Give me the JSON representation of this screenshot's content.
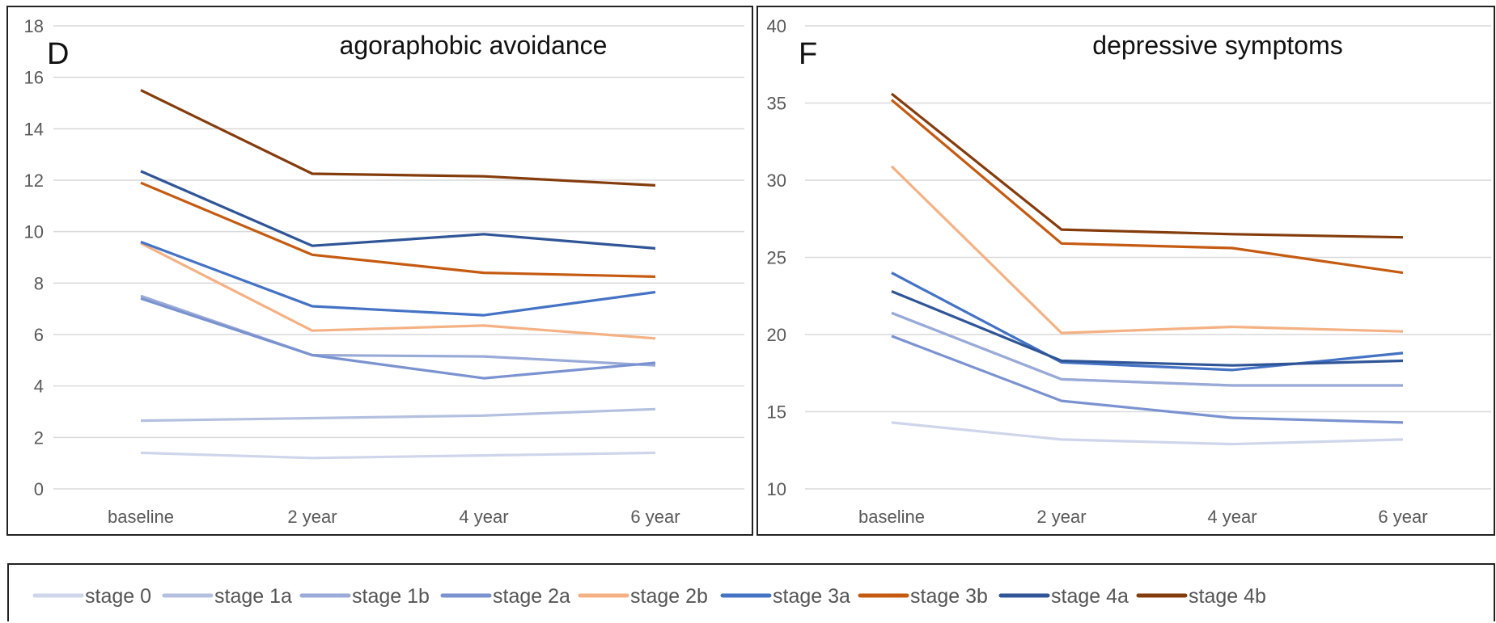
{
  "chart_data": [
    {
      "type": "line",
      "letter": "D",
      "title": "agoraphobic avoidance",
      "categories": [
        "baseline",
        "2 year",
        "4 year",
        "6 year"
      ],
      "ylim": [
        0,
        18
      ],
      "yticks": [
        0,
        2,
        4,
        6,
        8,
        10,
        12,
        14,
        16,
        18
      ],
      "grid": true,
      "series": [
        {
          "name": "stage 0",
          "color": "#cfd5ea",
          "values": [
            1.4,
            1.2,
            1.3,
            1.4
          ]
        },
        {
          "name": "stage 1a",
          "color": "#b4c0e0",
          "values": [
            2.65,
            2.75,
            2.85,
            3.1
          ]
        },
        {
          "name": "stage 1b",
          "color": "#9aaad8",
          "values": [
            7.5,
            5.2,
            5.15,
            4.8
          ]
        },
        {
          "name": "stage 2a",
          "color": "#7a92d0",
          "values": [
            7.4,
            5.2,
            4.3,
            4.9
          ]
        },
        {
          "name": "stage 2b",
          "color": "#f4b183",
          "values": [
            9.55,
            6.15,
            6.35,
            5.85
          ]
        },
        {
          "name": "stage 3a",
          "color": "#4472c4",
          "values": [
            9.6,
            7.1,
            6.75,
            7.65
          ]
        },
        {
          "name": "stage 3b",
          "color": "#c55a11",
          "values": [
            11.9,
            9.1,
            8.4,
            8.25
          ]
        },
        {
          "name": "stage 4a",
          "color": "#2f5597",
          "values": [
            12.35,
            9.45,
            9.9,
            9.35
          ]
        },
        {
          "name": "stage 4b",
          "color": "#843c0c",
          "values": [
            15.5,
            12.25,
            12.15,
            11.8
          ]
        }
      ]
    },
    {
      "type": "line",
      "letter": "F",
      "title": "depressive symptoms",
      "categories": [
        "baseline",
        "2 year",
        "4 year",
        "6 year"
      ],
      "ylim": [
        10,
        40
      ],
      "yticks": [
        10,
        15,
        20,
        25,
        30,
        35,
        40
      ],
      "grid": true,
      "series": [
        {
          "name": "stage 0",
          "color": "#cfd5ea",
          "values": [
            14.3,
            13.2,
            12.9,
            13.2
          ]
        },
        {
          "name": "stage 1a",
          "color": "#b4c0e0",
          "values": [
            21.4,
            17.1,
            16.7,
            16.7
          ]
        },
        {
          "name": "stage 1b",
          "color": "#9aaad8",
          "values": [
            21.4,
            17.1,
            16.7,
            16.7
          ]
        },
        {
          "name": "stage 2a",
          "color": "#7a92d0",
          "values": [
            19.9,
            15.7,
            14.6,
            14.3
          ]
        },
        {
          "name": "stage 2b",
          "color": "#f4b183",
          "values": [
            30.9,
            20.1,
            20.5,
            20.2
          ]
        },
        {
          "name": "stage 3a",
          "color": "#4472c4",
          "values": [
            24.0,
            18.2,
            17.7,
            18.8
          ]
        },
        {
          "name": "stage 3b",
          "color": "#c55a11",
          "values": [
            35.2,
            25.9,
            25.6,
            24.0
          ]
        },
        {
          "name": "stage 4a",
          "color": "#2f5597",
          "values": [
            22.8,
            18.3,
            18.0,
            18.3
          ]
        },
        {
          "name": "stage 4b",
          "color": "#843c0c",
          "values": [
            35.6,
            26.8,
            26.5,
            26.3
          ]
        }
      ]
    }
  ],
  "legend": {
    "placement": "bottom",
    "items": [
      {
        "label": "stage 0",
        "color": "#cfd5ea"
      },
      {
        "label": "stage 1a",
        "color": "#b4c0e0"
      },
      {
        "label": "stage 1b",
        "color": "#9aaad8"
      },
      {
        "label": "stage 2a",
        "color": "#7a92d0"
      },
      {
        "label": "stage 2b",
        "color": "#f4b183"
      },
      {
        "label": "stage 3a",
        "color": "#4472c4"
      },
      {
        "label": "stage 3b",
        "color": "#c55a11"
      },
      {
        "label": "stage 4a",
        "color": "#2f5597"
      },
      {
        "label": "stage 4b",
        "color": "#843c0c"
      }
    ]
  }
}
